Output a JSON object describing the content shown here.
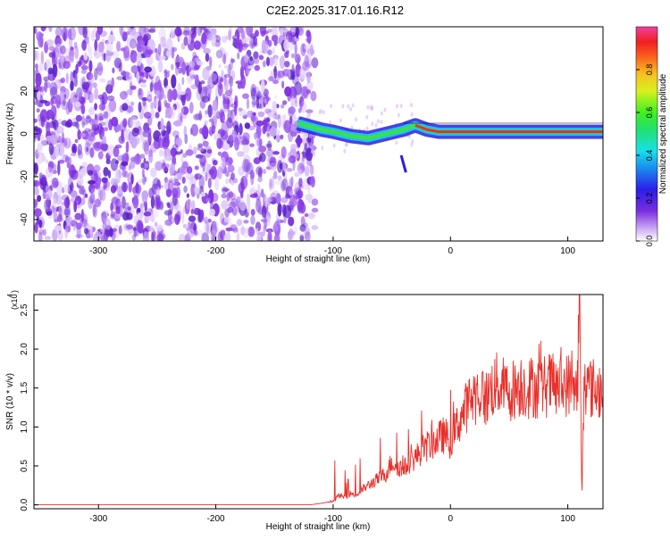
{
  "title": "C2E2.2025.317.01.16.R12",
  "colors": {
    "snr_line": "#e8302a",
    "spectrogram_noise": "#7b2de0",
    "spectrogram_light": "#d8b8f8",
    "ridge_core": "#e8302a"
  },
  "chart_data": [
    {
      "name": "spectrogram",
      "type": "heatmap",
      "xlabel": "Height of straight line (km)",
      "ylabel": "Frequency (Hz)",
      "xlim": [
        -355,
        130
      ],
      "ylim": [
        -50,
        50
      ],
      "xticks": [
        -300,
        -200,
        -100,
        0,
        100
      ],
      "yticks": [
        -40,
        -20,
        0,
        20,
        40
      ],
      "grid": false,
      "noise_region_x": [
        -355,
        -120
      ],
      "signal_ridge": {
        "x": [
          -130,
          -110,
          -100,
          -85,
          -70,
          -55,
          -40,
          -30,
          -20,
          -10,
          0,
          20,
          40,
          60,
          80,
          100,
          120,
          130
        ],
        "y": [
          5,
          2,
          1,
          -1,
          -2,
          0,
          2,
          4,
          2,
          1,
          1,
          1,
          1,
          1,
          1,
          1,
          1,
          1
        ]
      },
      "colorbar": {
        "label": "Normalized spectral amplitude",
        "range": [
          0.0,
          1.0
        ],
        "ticks": [
          0.0,
          0.2,
          0.4,
          0.6,
          0.8
        ],
        "tick_labels": [
          "0.0",
          "0.2",
          "0.4",
          "0.6",
          "0.8"
        ]
      }
    },
    {
      "name": "snr",
      "type": "line",
      "xlabel": "Height of straight line (km)",
      "ylabel": "SNR (10 * v/v)",
      "yscale_note": "(x10",
      "yscale_exp": "4",
      "xlim": [
        -355,
        130
      ],
      "ylim": [
        -0.05,
        2.7
      ],
      "xticks": [
        -300,
        -200,
        -100,
        0,
        100
      ],
      "yticks": [
        0.0,
        0.5,
        1.0,
        1.5,
        2.0,
        2.5
      ],
      "ytick_labels": [
        "0.0",
        "0.5",
        "1.0",
        "1.5",
        "2.0",
        "2.5"
      ],
      "grid": false,
      "series": [
        {
          "x": [
            -355,
            -300,
            -250,
            -200,
            -150,
            -120,
            -110,
            -100,
            -95,
            -90,
            -85,
            -80,
            -75,
            -70,
            -65,
            -60,
            -55,
            -50,
            -45,
            -40,
            -35,
            -30,
            -25,
            -20,
            -15,
            -10,
            -5,
            0,
            5,
            10,
            15,
            20,
            25,
            30,
            35,
            40,
            45,
            50,
            55,
            60,
            65,
            70,
            75,
            80,
            85,
            90,
            95,
            100,
            105,
            108,
            110,
            112,
            114,
            116,
            120,
            125,
            130
          ],
          "y": [
            0.0,
            0.0,
            0.0,
            0.0,
            0.0,
            0.0,
            0.02,
            0.05,
            0.12,
            0.1,
            0.15,
            0.12,
            0.2,
            0.25,
            0.3,
            0.35,
            0.4,
            0.55,
            0.5,
            0.45,
            0.55,
            0.6,
            0.7,
            0.75,
            0.8,
            0.85,
            0.9,
            0.8,
            1.0,
            1.15,
            1.3,
            1.4,
            1.45,
            1.35,
            1.5,
            1.55,
            1.5,
            1.45,
            1.5,
            1.55,
            1.5,
            1.52,
            1.5,
            1.52,
            1.55,
            1.5,
            1.52,
            1.55,
            1.5,
            1.45,
            2.6,
            0.05,
            1.7,
            1.5,
            1.5,
            1.48,
            1.5
          ]
        }
      ]
    }
  ]
}
